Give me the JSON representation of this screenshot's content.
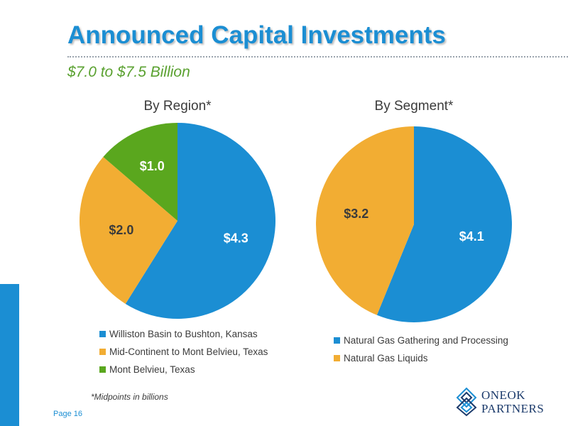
{
  "title": "Announced Capital Investments",
  "subtitle": "$7.0 to $7.5 Billion",
  "footnote": "*Midpoints in billions",
  "page_label": "Page 16",
  "logo": {
    "line1": "ONEOK",
    "line2": "PARTNERS",
    "icon": "oneok-swirl-icon"
  },
  "colors": {
    "blue": "#1b8ed3",
    "orange": "#f2ad33",
    "green": "#5aa71e"
  },
  "chart_data": [
    {
      "type": "pie",
      "title": "By Region*",
      "start_angle_deg": 0,
      "slices": [
        {
          "name": "Williston Basin to Bushton, Kansas",
          "value": 4.3,
          "label": "$4.3",
          "color": "#1b8ed3",
          "label_color": "#ffffff"
        },
        {
          "name": "Mid-Continent to Mont Belvieu, Texas",
          "value": 2.0,
          "label": "$2.0",
          "color": "#f2ad33",
          "label_color": "#3b3b3b"
        },
        {
          "name": "Mont Belvieu, Texas",
          "value": 1.0,
          "label": "$1.0",
          "color": "#5aa71e",
          "label_color": "#ffffff"
        }
      ],
      "legend_position": "bottom"
    },
    {
      "type": "pie",
      "title": "By Segment*",
      "start_angle_deg": 0,
      "slices": [
        {
          "name": "Natural Gas Gathering and Processing",
          "value": 4.1,
          "label": "$4.1",
          "color": "#1b8ed3",
          "label_color": "#ffffff"
        },
        {
          "name": "Natural Gas Liquids",
          "value": 3.2,
          "label": "$3.2",
          "color": "#f2ad33",
          "label_color": "#3b3b3b"
        }
      ],
      "legend_position": "bottom"
    }
  ]
}
